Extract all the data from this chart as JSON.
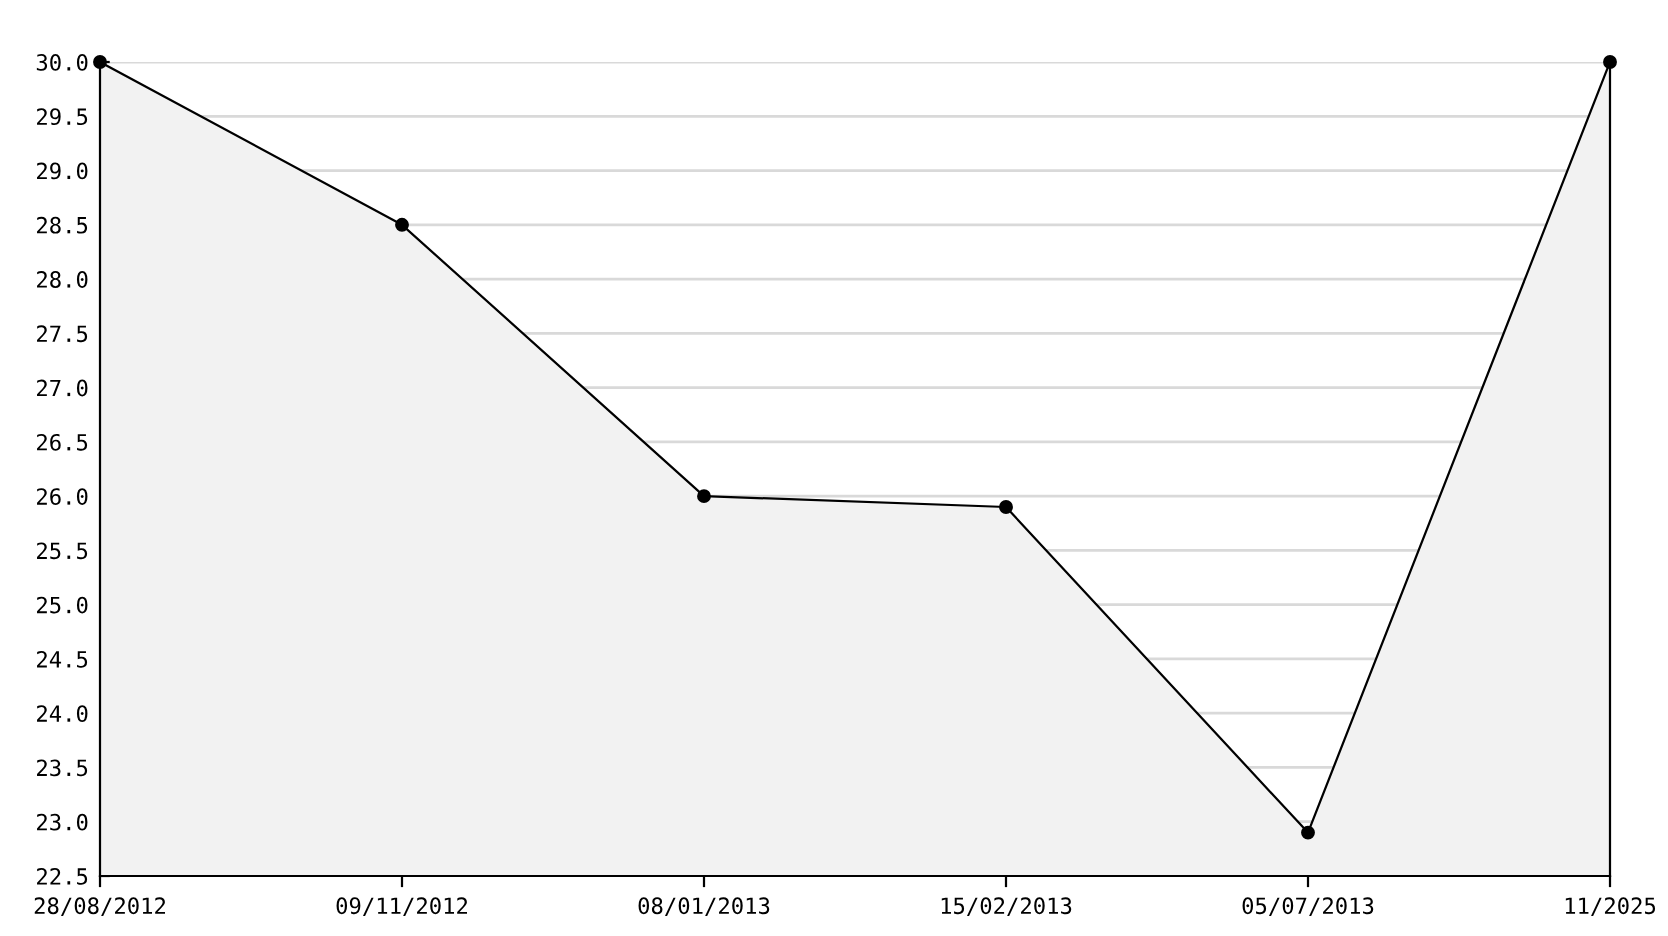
{
  "chart_data": {
    "type": "area",
    "categories": [
      "28/08/2012",
      "09/11/2012",
      "08/01/2013",
      "15/02/2013",
      "05/07/2013",
      "11/2025"
    ],
    "series": [
      {
        "color": "#000000",
        "values": [
          30.0,
          28.5,
          26.0,
          25.9,
          22.9,
          30.0
        ]
      }
    ],
    "ylim": [
      22.5,
      30.0
    ],
    "yticks": [
      {
        "value": 22.5,
        "label": "22.5"
      },
      {
        "value": 23.0,
        "label": "23.0"
      },
      {
        "value": 23.5,
        "label": "23.5"
      },
      {
        "value": 24.0,
        "label": "24.0"
      },
      {
        "value": 24.5,
        "label": "24.5"
      },
      {
        "value": 25.0,
        "label": "25.0"
      },
      {
        "value": 25.5,
        "label": "25.5"
      },
      {
        "value": 26.0,
        "label": "26.0"
      },
      {
        "value": 26.5,
        "label": "26.5"
      },
      {
        "value": 27.0,
        "label": "27.0"
      },
      {
        "value": 27.5,
        "label": "27.5"
      },
      {
        "value": 28.0,
        "label": "28.0"
      },
      {
        "value": 28.5,
        "label": "28.5"
      },
      {
        "value": 29.0,
        "label": "29.0"
      },
      {
        "value": 29.5,
        "label": "29.5"
      },
      {
        "value": 30.0,
        "label": "30.0"
      }
    ],
    "grid": "y",
    "marker": "circle",
    "line_style": "solid"
  }
}
